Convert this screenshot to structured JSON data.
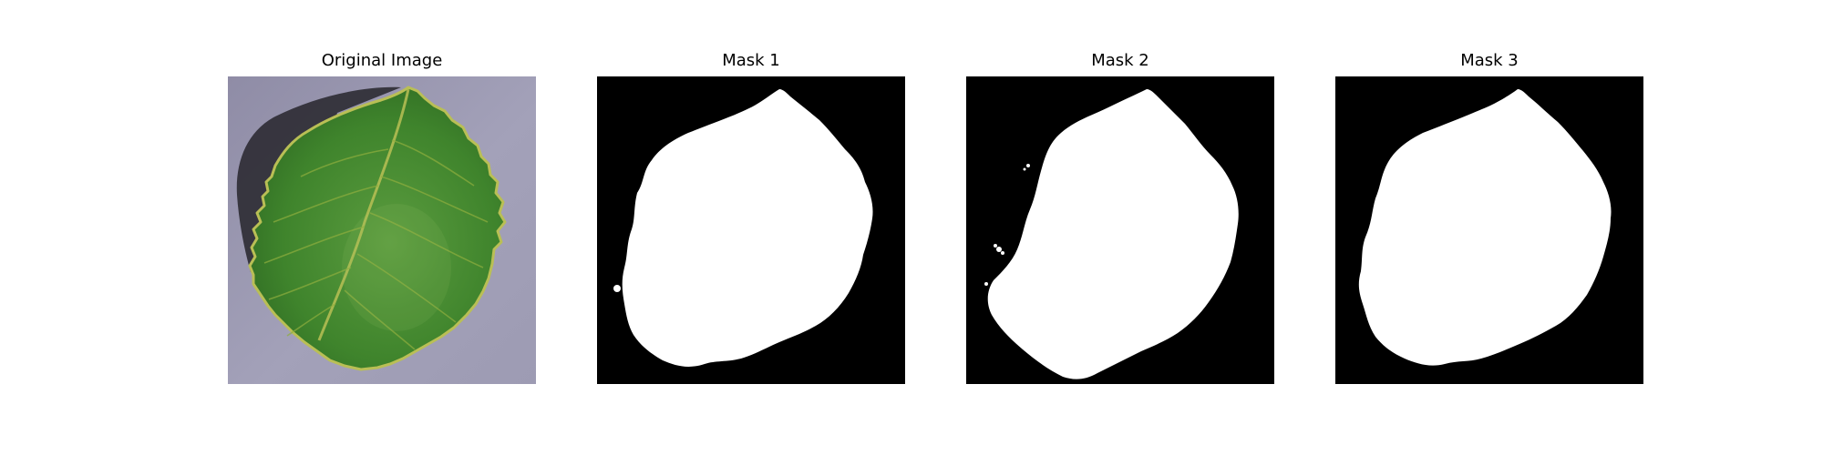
{
  "figure": {
    "panels": [
      {
        "title": "Original Image",
        "kind": "photo",
        "subject": "leaf-icon"
      },
      {
        "title": "Mask 1",
        "kind": "mask"
      },
      {
        "title": "Mask 2",
        "kind": "mask"
      },
      {
        "title": "Mask 3",
        "kind": "mask"
      }
    ]
  },
  "colors": {
    "mask_background": "#000000",
    "mask_foreground": "#ffffff",
    "leaf_green": "#3f8a2e",
    "leaf_dark": "#245a1c",
    "leaf_edge": "#b7bf52",
    "surface": "#9a98b2",
    "shadow": "#2a2a30"
  }
}
